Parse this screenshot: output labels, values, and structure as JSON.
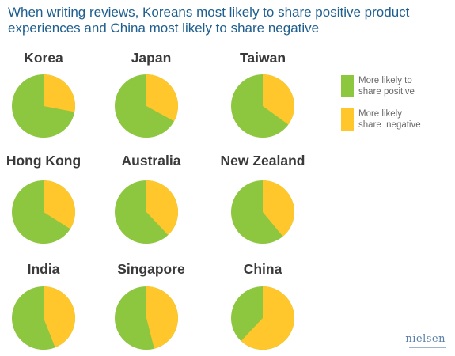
{
  "chart_data": {
    "type": "pie",
    "title": "When writing reviews, Koreans most likely to share positive product experiences and China most likely to share negative",
    "legend": {
      "placement": "right",
      "items": [
        {
          "name": "More likely to\nshare positive",
          "color": "#8dc63f"
        },
        {
          "name": "More likely\nshare  negative",
          "color": "#ffc72c"
        }
      ]
    },
    "countries": [
      {
        "name": "Korea",
        "negative": 0.28
      },
      {
        "name": "Japan",
        "negative": 0.33
      },
      {
        "name": "Taiwan",
        "negative": 0.35
      },
      {
        "name": "Hong Kong",
        "negative": 0.34
      },
      {
        "name": "Australia",
        "negative": 0.38
      },
      {
        "name": "New Zealand",
        "negative": 0.39
      },
      {
        "name": "India",
        "negative": 0.44
      },
      {
        "name": "Singapore",
        "negative": 0.46
      },
      {
        "name": "China",
        "negative": 0.62
      }
    ]
  },
  "brand": "nielsen"
}
